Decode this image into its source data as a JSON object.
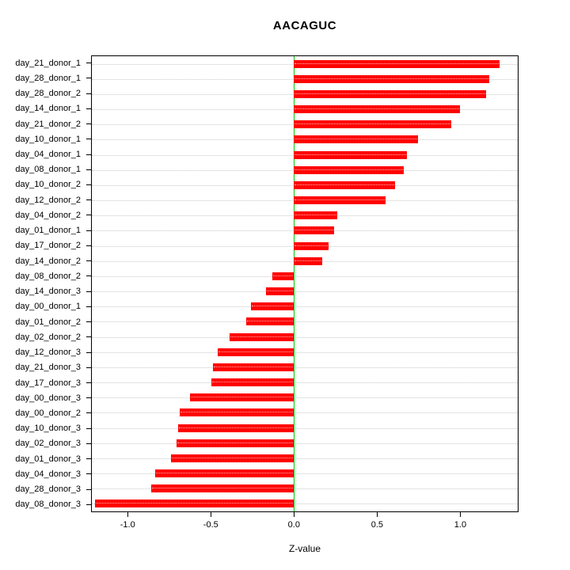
{
  "chart_data": {
    "type": "bar",
    "orientation": "horizontal",
    "title": "AACAGUC",
    "xlabel": "Z-value",
    "ylabel": "",
    "grid": true,
    "grid_style": "dotted",
    "bar_color": "#ff0000",
    "zero_line_color": "#00cc00",
    "xlim": [
      -1.22,
      1.35
    ],
    "x_ticks": [
      -1.0,
      -0.5,
      0.0,
      0.5,
      1.0
    ],
    "x_tick_labels": [
      "-1.0",
      "-0.5",
      "0.0",
      "0.5",
      "1.0"
    ],
    "categories": [
      "day_21_donor_1",
      "day_28_donor_1",
      "day_28_donor_2",
      "day_14_donor_1",
      "day_21_donor_2",
      "day_10_donor_1",
      "day_04_donor_1",
      "day_08_donor_1",
      "day_10_donor_2",
      "day_12_donor_2",
      "day_04_donor_2",
      "day_01_donor_1",
      "day_17_donor_2",
      "day_14_donor_2",
      "day_08_donor_2",
      "day_14_donor_3",
      "day_00_donor_1",
      "day_01_donor_2",
      "day_02_donor_2",
      "day_12_donor_3",
      "day_21_donor_3",
      "day_17_donor_3",
      "day_00_donor_3",
      "day_00_donor_2",
      "day_10_donor_3",
      "day_02_donor_3",
      "day_01_donor_3",
      "day_04_donor_3",
      "day_28_donor_3",
      "day_08_donor_3"
    ],
    "values": [
      1.24,
      1.18,
      1.16,
      1.0,
      0.95,
      0.75,
      0.68,
      0.66,
      0.61,
      0.55,
      0.26,
      0.24,
      0.21,
      0.17,
      -0.13,
      -0.17,
      -0.26,
      -0.29,
      -0.39,
      -0.46,
      -0.49,
      -0.5,
      -0.63,
      -0.69,
      -0.7,
      -0.71,
      -0.74,
      -0.84,
      -0.86,
      -1.2
    ]
  }
}
